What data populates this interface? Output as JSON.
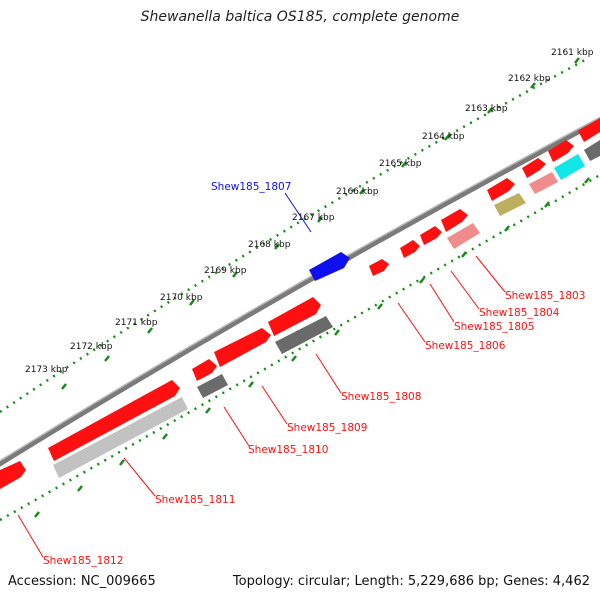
{
  "title": "Shewanella baltica OS185, complete genome",
  "footer": {
    "accession": "Accession: NC_009665",
    "summary": "Topology: circular; Length: 5,229,686 bp; Genes: 4,462"
  },
  "ruler": {
    "labels": [
      "2161 kbp",
      "2162 kbp",
      "2163 kbp",
      "2164 kbp",
      "2165 kbp",
      "2166 kbp",
      "2167 kbp",
      "2168 kbp",
      "2169 kbp",
      "2170 kbp",
      "2171 kbp",
      "2172 kbp",
      "2173 kbp"
    ]
  },
  "colors": {
    "red": "#ff1010",
    "red_light": "#f08c8c",
    "blue": "#1010ee",
    "cyan": "#10e8e8",
    "olive": "#bcb060",
    "gray": "#6a6a6a",
    "gray_light": "#c2c2c2",
    "tick": "#1a8a1a",
    "backbone": "#7a7a7a"
  },
  "gene_labels": [
    {
      "id": "Shew185_1807",
      "color": "blue"
    },
    {
      "id": "Shew185_1803",
      "color": "red"
    },
    {
      "id": "Shew185_1804",
      "color": "red"
    },
    {
      "id": "Shew185_1805",
      "color": "red"
    },
    {
      "id": "Shew185_1806",
      "color": "red"
    },
    {
      "id": "Shew185_1808",
      "color": "red"
    },
    {
      "id": "Shew185_1809",
      "color": "red"
    },
    {
      "id": "Shew185_1810",
      "color": "red"
    },
    {
      "id": "Shew185_1811",
      "color": "red"
    },
    {
      "id": "Shew185_1812",
      "color": "red"
    }
  ]
}
